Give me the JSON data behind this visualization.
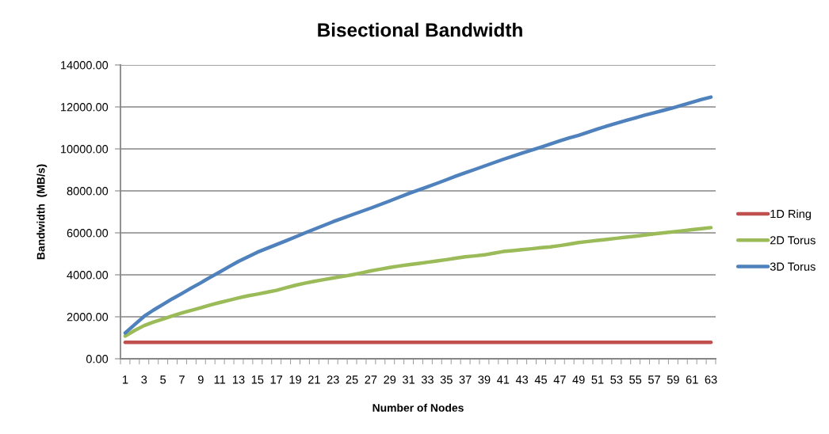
{
  "chart_data": {
    "type": "line",
    "title": "Bisectional Bandwidth",
    "xlabel": "Number of Nodes",
    "ylabel": "Bandwidth  (MB/s)",
    "categories": [
      "1",
      null,
      "3",
      null,
      "5",
      null,
      "7",
      null,
      "9",
      null,
      "11",
      null,
      "13",
      null,
      "15",
      null,
      "17",
      null,
      "19",
      null,
      "21",
      null,
      "23",
      null,
      "25",
      null,
      "27",
      null,
      "29",
      null,
      "31",
      null,
      "33",
      null,
      "35",
      null,
      "37",
      null,
      "39",
      null,
      "41",
      null,
      "43",
      null,
      "45",
      null,
      "47",
      null,
      "49",
      null,
      "51",
      null,
      "53",
      null,
      "55",
      null,
      "57",
      null,
      "59",
      null,
      "61",
      null,
      "63"
    ],
    "series": [
      {
        "name": "1D Ring",
        "color": "#c0504d",
        "values": [
          780,
          780,
          780,
          780,
          780,
          780,
          780,
          780,
          780,
          780,
          780,
          780,
          780,
          780,
          780,
          780,
          780,
          780,
          780,
          780,
          780,
          780,
          780,
          780,
          780,
          780,
          780,
          780,
          780,
          780,
          780,
          780,
          780,
          780,
          780,
          780,
          780,
          780,
          780,
          780,
          780,
          780,
          780,
          780,
          780,
          780,
          780,
          780,
          780,
          780,
          780,
          780,
          780,
          780,
          780,
          780,
          780,
          780,
          780,
          780,
          780,
          780,
          780
        ]
      },
      {
        "name": "2D Torus",
        "color": "#9bbb59",
        "values": [
          1080,
          1350,
          1580,
          1750,
          1890,
          2040,
          2180,
          2310,
          2430,
          2560,
          2680,
          2790,
          2900,
          3000,
          3080,
          3170,
          3260,
          3380,
          3500,
          3600,
          3690,
          3770,
          3850,
          3920,
          4000,
          4090,
          4190,
          4270,
          4350,
          4420,
          4480,
          4540,
          4600,
          4660,
          4720,
          4790,
          4860,
          4900,
          4950,
          5030,
          5110,
          5150,
          5200,
          5240,
          5290,
          5330,
          5390,
          5460,
          5540,
          5590,
          5640,
          5690,
          5740,
          5790,
          5840,
          5890,
          5950,
          6000,
          6050,
          6100,
          6150,
          6200,
          6250
        ]
      },
      {
        "name": "3D Torus",
        "color": "#4f81bd",
        "values": [
          1230,
          1630,
          2020,
          2320,
          2590,
          2860,
          3110,
          3370,
          3620,
          3880,
          4130,
          4390,
          4640,
          4860,
          5080,
          5260,
          5440,
          5620,
          5800,
          5990,
          6170,
          6350,
          6530,
          6690,
          6860,
          7020,
          7180,
          7350,
          7520,
          7700,
          7870,
          8030,
          8190,
          8360,
          8530,
          8700,
          8860,
          9020,
          9180,
          9340,
          9500,
          9650,
          9800,
          9940,
          10080,
          10230,
          10380,
          10520,
          10650,
          10800,
          10950,
          11090,
          11220,
          11350,
          11480,
          11610,
          11720,
          11840,
          11960,
          12090,
          12220,
          12350,
          12470
        ]
      }
    ],
    "ylim": [
      0,
      14000
    ],
    "yticks": [
      {
        "value": 0,
        "label": "0.00"
      },
      {
        "value": 2000,
        "label": "2000.00"
      },
      {
        "value": 4000,
        "label": "4000.00"
      },
      {
        "value": 6000,
        "label": "6000.00"
      },
      {
        "value": 8000,
        "label": "8000.00"
      },
      {
        "value": 10000,
        "label": "10000.00"
      },
      {
        "value": 12000,
        "label": "12000.00"
      },
      {
        "value": 14000,
        "label": "14000.00"
      }
    ],
    "grid": "y",
    "legend": "right",
    "line_style": "solid"
  }
}
